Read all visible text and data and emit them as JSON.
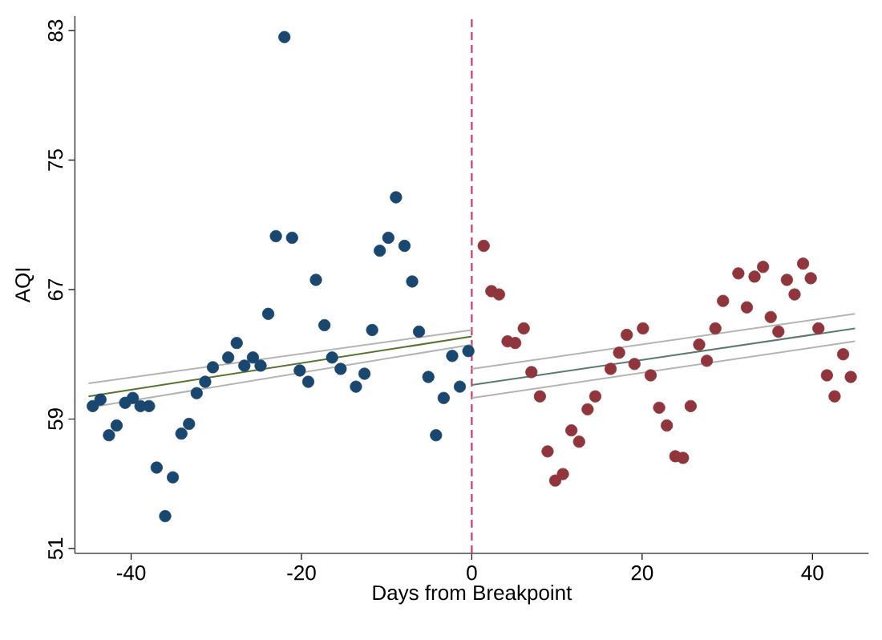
{
  "chart_data": {
    "type": "scatter",
    "xlabel": "Days from Breakpoint",
    "ylabel": "AQI",
    "xlim": [
      -46.6,
      46.6
    ],
    "ylim": [
      50.7,
      83.9
    ],
    "xticks": [
      -40,
      -20,
      0,
      20,
      40
    ],
    "yticks": [
      51,
      59,
      67,
      75,
      83
    ],
    "grid": false,
    "series": [
      {
        "marker": "circle",
        "color": "#1a476f",
        "x": [
          -44.5,
          -43.6,
          -42.6,
          -41.7,
          -40.7,
          -39.8,
          -38.9,
          -37.9,
          -37.0,
          -36.0,
          -35.1,
          -34.1,
          -33.2,
          -32.3,
          -31.3,
          -30.4,
          -28.6,
          -27.6,
          -26.7,
          -25.7,
          -24.8,
          -23.9,
          -23.0,
          -22.0,
          -21.1,
          -20.2,
          -19.2,
          -18.3,
          -17.3,
          -16.4,
          -15.4,
          -13.6,
          -12.6,
          -11.7,
          -10.8,
          -9.8,
          -8.9,
          -7.9,
          -7.0,
          -6.2,
          -5.1,
          -4.2,
          -3.3,
          -2.3,
          -1.4,
          -0.4
        ],
        "values": [
          59.8,
          60.2,
          58.0,
          58.6,
          60.0,
          60.3,
          59.8,
          59.8,
          56.0,
          53.0,
          55.4,
          58.1,
          58.7,
          60.6,
          61.3,
          62.2,
          62.8,
          63.7,
          62.3,
          62.8,
          62.3,
          65.5,
          70.3,
          82.6,
          70.2,
          62.0,
          61.3,
          67.6,
          64.8,
          62.8,
          62.1,
          61.0,
          61.8,
          64.5,
          69.4,
          70.2,
          72.7,
          69.7,
          67.5,
          64.4,
          61.6,
          58.0,
          60.3,
          62.9,
          61.0,
          63.2
        ]
      },
      {
        "marker": "circle",
        "color": "#90353b",
        "x": [
          1.4,
          2.3,
          3.2,
          4.2,
          5.1,
          6.1,
          7.0,
          8.0,
          8.9,
          9.8,
          10.7,
          11.7,
          12.6,
          13.6,
          14.5,
          16.3,
          17.3,
          18.2,
          19.1,
          20.1,
          21.0,
          22.0,
          22.9,
          23.9,
          24.8,
          25.7,
          26.7,
          27.6,
          28.6,
          29.5,
          31.3,
          32.3,
          33.2,
          34.2,
          35.1,
          36.0,
          37.0,
          37.9,
          38.9,
          39.8,
          40.7,
          41.7,
          42.6,
          43.6,
          44.5
        ],
        "values": [
          69.7,
          66.9,
          66.7,
          63.8,
          63.7,
          64.6,
          61.9,
          60.4,
          57.0,
          55.2,
          55.6,
          58.3,
          57.6,
          59.6,
          60.4,
          62.1,
          63.1,
          64.2,
          62.4,
          64.6,
          61.7,
          59.7,
          58.6,
          56.7,
          56.6,
          59.8,
          63.6,
          62.6,
          64.6,
          66.3,
          68.0,
          65.9,
          67.8,
          68.4,
          65.3,
          64.4,
          67.6,
          66.7,
          68.6,
          67.7,
          64.6,
          61.7,
          60.4,
          63.0,
          61.6
        ]
      },
      {
        "type": "line",
        "color": "#b4b4b4",
        "x": [
          -45,
          0
        ],
        "values": [
          61.2,
          64.5
        ]
      },
      {
        "type": "line",
        "color": "#b4b4b4",
        "x": [
          -45,
          0
        ],
        "values": [
          59.7,
          63.6
        ]
      },
      {
        "type": "line",
        "color": "#55752f",
        "x": [
          -45,
          0
        ],
        "values": [
          60.4,
          64.1
        ]
      },
      {
        "type": "line",
        "color": "#b4b4b4",
        "x": [
          0,
          45
        ],
        "values": [
          62.1,
          65.5
        ]
      },
      {
        "type": "line",
        "color": "#b4b4b4",
        "x": [
          0,
          45
        ],
        "values": [
          60.3,
          63.8
        ]
      },
      {
        "type": "line",
        "color": "#5a7a72",
        "x": [
          0,
          45
        ],
        "values": [
          61.1,
          64.6
        ]
      }
    ],
    "ref_lines": [
      {
        "axis": "x",
        "value": 0,
        "color": "#d1386c",
        "line_style": "dashed"
      }
    ]
  }
}
